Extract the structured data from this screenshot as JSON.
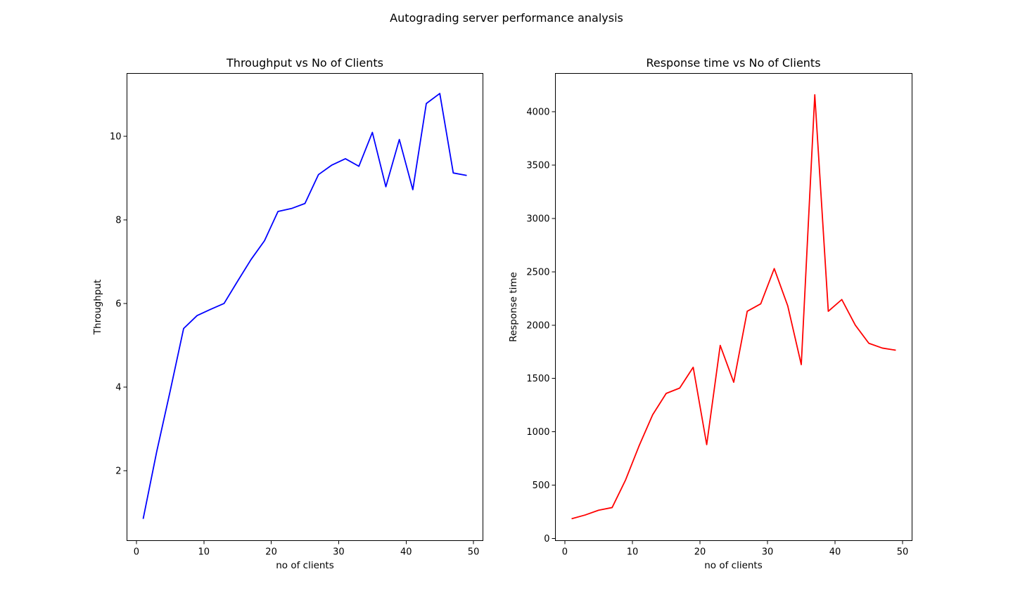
{
  "figure": {
    "suptitle": "Autograding server performance analysis"
  },
  "chart_data": [
    {
      "type": "line",
      "title": "Throughput vs No of Clients",
      "xlabel": "no of clients",
      "ylabel": "Throughput",
      "color": "#0000ff",
      "xlim": [
        -1.4,
        51.4
      ],
      "ylim": [
        0.33,
        11.5
      ],
      "xticks": [
        0,
        10,
        20,
        30,
        40,
        50
      ],
      "yticks": [
        2,
        4,
        6,
        8,
        10
      ],
      "grid": false,
      "x": [
        1,
        3,
        5,
        7,
        9,
        11,
        13,
        15,
        17,
        19,
        21,
        23,
        25,
        27,
        29,
        31,
        33,
        35,
        37,
        39,
        41,
        43,
        45,
        47,
        49
      ],
      "y": [
        0.85,
        2.45,
        3.9,
        5.4,
        5.71,
        5.86,
        6.0,
        6.53,
        7.05,
        7.5,
        8.2,
        8.27,
        8.39,
        9.08,
        9.31,
        9.46,
        9.28,
        10.09,
        8.79,
        9.92,
        8.72,
        10.78,
        11.02,
        9.12,
        9.06
      ]
    },
    {
      "type": "line",
      "title": "Response time vs No of Clients",
      "xlabel": "no of clients",
      "ylabel": "Response time",
      "color": "#ff0000",
      "xlim": [
        -1.4,
        51.4
      ],
      "ylim": [
        -20,
        4360
      ],
      "xticks": [
        0,
        10,
        20,
        30,
        40,
        50
      ],
      "yticks": [
        0,
        500,
        1000,
        1500,
        2000,
        2500,
        3000,
        3500,
        4000
      ],
      "grid": false,
      "x": [
        1,
        3,
        5,
        7,
        9,
        11,
        13,
        15,
        17,
        19,
        21,
        23,
        25,
        27,
        29,
        31,
        33,
        35,
        37,
        39,
        41,
        43,
        45,
        47,
        49
      ],
      "y": [
        185,
        220,
        265,
        290,
        550,
        870,
        1160,
        1360,
        1410,
        1605,
        880,
        1810,
        1465,
        2130,
        2200,
        2530,
        2180,
        1630,
        4160,
        2130,
        2240,
        2000,
        1830,
        1785,
        1765
      ]
    }
  ]
}
